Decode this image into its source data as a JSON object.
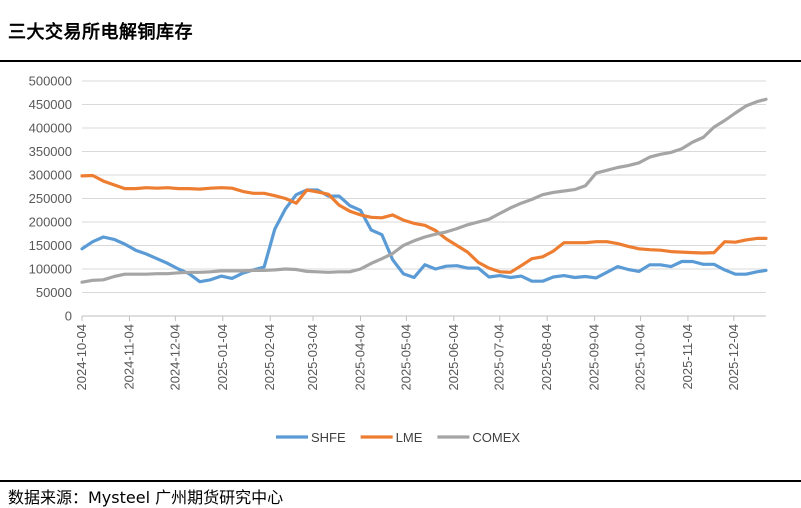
{
  "page": {
    "title": "三大交易所电解铜库存",
    "source": "数据来源：Mysteel 广州期货研究中心"
  },
  "chart_data": {
    "type": "line",
    "title": "三大交易所电解铜库存",
    "xlabel": "",
    "ylabel": "",
    "ylim": [
      0,
      500000
    ],
    "yticks": [
      0,
      50000,
      100000,
      150000,
      200000,
      250000,
      300000,
      350000,
      400000,
      450000,
      500000
    ],
    "xlim": [
      "2024-10-04",
      "2025-12-25"
    ],
    "xticks": [
      "2024-10-04",
      "2024-11-04",
      "2024-12-04",
      "2025-01-04",
      "2025-02-04",
      "2025-03-04",
      "2025-04-04",
      "2025-05-04",
      "2025-06-04",
      "2025-07-04",
      "2025-08-04",
      "2025-09-04",
      "2025-10-04",
      "2025-11-04",
      "2025-12-04"
    ],
    "grid": true,
    "legend": "bottom",
    "colors": {
      "SHFE": "#5b9bd5",
      "LME": "#ed7d31",
      "COMEX": "#a5a5a5"
    },
    "series": [
      {
        "name": "SHFE",
        "points": [
          [
            "2024-10-04",
            143000
          ],
          [
            "2024-10-11",
            158000
          ],
          [
            "2024-10-18",
            168000
          ],
          [
            "2024-10-25",
            163000
          ],
          [
            "2024-11-01",
            153000
          ],
          [
            "2024-11-08",
            140000
          ],
          [
            "2024-11-15",
            132000
          ],
          [
            "2024-11-22",
            122000
          ],
          [
            "2024-11-29",
            112000
          ],
          [
            "2024-12-06",
            100000
          ],
          [
            "2024-12-13",
            90000
          ],
          [
            "2024-12-20",
            73000
          ],
          [
            "2024-12-27",
            77000
          ],
          [
            "2025-01-03",
            85000
          ],
          [
            "2025-01-10",
            80000
          ],
          [
            "2025-01-17",
            91000
          ],
          [
            "2025-01-24",
            98000
          ],
          [
            "2025-01-31",
            104000
          ],
          [
            "2025-02-07",
            185000
          ],
          [
            "2025-02-14",
            228000
          ],
          [
            "2025-02-21",
            258000
          ],
          [
            "2025-02-28",
            268000
          ],
          [
            "2025-03-07",
            268000
          ],
          [
            "2025-03-14",
            255000
          ],
          [
            "2025-03-21",
            255000
          ],
          [
            "2025-03-28",
            235000
          ],
          [
            "2025-04-04",
            225000
          ],
          [
            "2025-04-11",
            183000
          ],
          [
            "2025-04-18",
            173000
          ],
          [
            "2025-04-25",
            120000
          ],
          [
            "2025-05-02",
            90000
          ],
          [
            "2025-05-09",
            82000
          ],
          [
            "2025-05-16",
            109000
          ],
          [
            "2025-05-23",
            100000
          ],
          [
            "2025-05-30",
            106000
          ],
          [
            "2025-06-06",
            107000
          ],
          [
            "2025-06-13",
            102000
          ],
          [
            "2025-06-20",
            102000
          ],
          [
            "2025-06-27",
            83000
          ],
          [
            "2025-07-04",
            86000
          ],
          [
            "2025-07-11",
            82000
          ],
          [
            "2025-07-18",
            85000
          ],
          [
            "2025-07-25",
            74000
          ],
          [
            "2025-08-01",
            74000
          ],
          [
            "2025-08-08",
            83000
          ],
          [
            "2025-08-15",
            86000
          ],
          [
            "2025-08-22",
            82000
          ],
          [
            "2025-08-29",
            84000
          ],
          [
            "2025-09-05",
            81000
          ],
          [
            "2025-09-12",
            93000
          ],
          [
            "2025-09-19",
            105000
          ],
          [
            "2025-09-26",
            99000
          ],
          [
            "2025-10-03",
            95000
          ],
          [
            "2025-10-10",
            109000
          ],
          [
            "2025-10-17",
            109000
          ],
          [
            "2025-10-24",
            105000
          ],
          [
            "2025-10-31",
            116000
          ],
          [
            "2025-11-07",
            116000
          ],
          [
            "2025-11-14",
            110000
          ],
          [
            "2025-11-21",
            110000
          ],
          [
            "2025-11-28",
            98000
          ],
          [
            "2025-12-05",
            89000
          ],
          [
            "2025-12-12",
            89000
          ],
          [
            "2025-12-19",
            94000
          ],
          [
            "2025-12-25",
            97000
          ]
        ]
      },
      {
        "name": "LME",
        "points": [
          [
            "2024-10-04",
            298000
          ],
          [
            "2024-10-11",
            299000
          ],
          [
            "2024-10-18",
            287000
          ],
          [
            "2024-10-25",
            279000
          ],
          [
            "2024-11-01",
            271000
          ],
          [
            "2024-11-08",
            271000
          ],
          [
            "2024-11-15",
            273000
          ],
          [
            "2024-11-22",
            272000
          ],
          [
            "2024-11-29",
            273000
          ],
          [
            "2024-12-06",
            271000
          ],
          [
            "2024-12-13",
            271000
          ],
          [
            "2024-12-20",
            270000
          ],
          [
            "2024-12-27",
            272000
          ],
          [
            "2025-01-03",
            273000
          ],
          [
            "2025-01-10",
            272000
          ],
          [
            "2025-01-17",
            265000
          ],
          [
            "2025-01-24",
            261000
          ],
          [
            "2025-01-31",
            261000
          ],
          [
            "2025-02-07",
            256000
          ],
          [
            "2025-02-14",
            250000
          ],
          [
            "2025-02-21",
            240000
          ],
          [
            "2025-02-28",
            268000
          ],
          [
            "2025-03-07",
            264000
          ],
          [
            "2025-03-14",
            259000
          ],
          [
            "2025-03-21",
            236000
          ],
          [
            "2025-03-28",
            223000
          ],
          [
            "2025-04-04",
            215000
          ],
          [
            "2025-04-11",
            210000
          ],
          [
            "2025-04-18",
            209000
          ],
          [
            "2025-04-25",
            215000
          ],
          [
            "2025-05-02",
            204000
          ],
          [
            "2025-05-09",
            197000
          ],
          [
            "2025-05-16",
            193000
          ],
          [
            "2025-05-23",
            182000
          ],
          [
            "2025-05-30",
            164000
          ],
          [
            "2025-06-06",
            150000
          ],
          [
            "2025-06-13",
            136000
          ],
          [
            "2025-06-20",
            114000
          ],
          [
            "2025-06-27",
            102000
          ],
          [
            "2025-07-04",
            94000
          ],
          [
            "2025-07-11",
            93000
          ],
          [
            "2025-07-18",
            107000
          ],
          [
            "2025-07-25",
            122000
          ],
          [
            "2025-08-01",
            126000
          ],
          [
            "2025-08-08",
            138000
          ],
          [
            "2025-08-15",
            156000
          ],
          [
            "2025-08-22",
            156000
          ],
          [
            "2025-08-29",
            156000
          ],
          [
            "2025-09-05",
            158000
          ],
          [
            "2025-09-12",
            158000
          ],
          [
            "2025-09-19",
            154000
          ],
          [
            "2025-09-26",
            148000
          ],
          [
            "2025-10-03",
            143000
          ],
          [
            "2025-10-10",
            141000
          ],
          [
            "2025-10-17",
            140000
          ],
          [
            "2025-10-24",
            137000
          ],
          [
            "2025-10-31",
            136000
          ],
          [
            "2025-11-07",
            135000
          ],
          [
            "2025-11-14",
            134000
          ],
          [
            "2025-11-21",
            135000
          ],
          [
            "2025-11-28",
            158000
          ],
          [
            "2025-12-05",
            157000
          ],
          [
            "2025-12-12",
            162000
          ],
          [
            "2025-12-19",
            165000
          ],
          [
            "2025-12-25",
            165000
          ]
        ]
      },
      {
        "name": "COMEX",
        "points": [
          [
            "2024-10-04",
            72000
          ],
          [
            "2024-10-11",
            76000
          ],
          [
            "2024-10-18",
            77000
          ],
          [
            "2024-10-25",
            84000
          ],
          [
            "2024-11-01",
            89000
          ],
          [
            "2024-11-08",
            89000
          ],
          [
            "2024-11-15",
            89000
          ],
          [
            "2024-11-22",
            90000
          ],
          [
            "2024-11-29",
            90000
          ],
          [
            "2024-12-06",
            92000
          ],
          [
            "2024-12-13",
            93000
          ],
          [
            "2024-12-20",
            93000
          ],
          [
            "2024-12-27",
            94000
          ],
          [
            "2025-01-03",
            96000
          ],
          [
            "2025-01-10",
            96000
          ],
          [
            "2025-01-17",
            96000
          ],
          [
            "2025-01-24",
            97000
          ],
          [
            "2025-01-31",
            97000
          ],
          [
            "2025-02-07",
            98000
          ],
          [
            "2025-02-14",
            100000
          ],
          [
            "2025-02-21",
            99000
          ],
          [
            "2025-02-28",
            95000
          ],
          [
            "2025-03-07",
            94000
          ],
          [
            "2025-03-14",
            93000
          ],
          [
            "2025-03-21",
            94000
          ],
          [
            "2025-03-28",
            94000
          ],
          [
            "2025-04-04",
            100000
          ],
          [
            "2025-04-11",
            112000
          ],
          [
            "2025-04-18",
            122000
          ],
          [
            "2025-04-25",
            133000
          ],
          [
            "2025-05-02",
            150000
          ],
          [
            "2025-05-09",
            160000
          ],
          [
            "2025-05-16",
            168000
          ],
          [
            "2025-05-23",
            174000
          ],
          [
            "2025-05-30",
            179000
          ],
          [
            "2025-06-06",
            186000
          ],
          [
            "2025-06-13",
            194000
          ],
          [
            "2025-06-20",
            200000
          ],
          [
            "2025-06-27",
            206000
          ],
          [
            "2025-07-04",
            218000
          ],
          [
            "2025-07-11",
            230000
          ],
          [
            "2025-07-18",
            240000
          ],
          [
            "2025-07-25",
            248000
          ],
          [
            "2025-08-01",
            258000
          ],
          [
            "2025-08-08",
            263000
          ],
          [
            "2025-08-15",
            266000
          ],
          [
            "2025-08-22",
            269000
          ],
          [
            "2025-08-29",
            277000
          ],
          [
            "2025-09-05",
            304000
          ],
          [
            "2025-09-12",
            310000
          ],
          [
            "2025-09-19",
            316000
          ],
          [
            "2025-09-26",
            320000
          ],
          [
            "2025-10-03",
            326000
          ],
          [
            "2025-10-10",
            338000
          ],
          [
            "2025-10-17",
            344000
          ],
          [
            "2025-10-24",
            348000
          ],
          [
            "2025-10-31",
            356000
          ],
          [
            "2025-11-07",
            370000
          ],
          [
            "2025-11-14",
            380000
          ],
          [
            "2025-11-21",
            402000
          ],
          [
            "2025-11-28",
            416000
          ],
          [
            "2025-12-05",
            432000
          ],
          [
            "2025-12-12",
            447000
          ],
          [
            "2025-12-19",
            456000
          ],
          [
            "2025-12-25",
            461000
          ]
        ]
      }
    ]
  }
}
